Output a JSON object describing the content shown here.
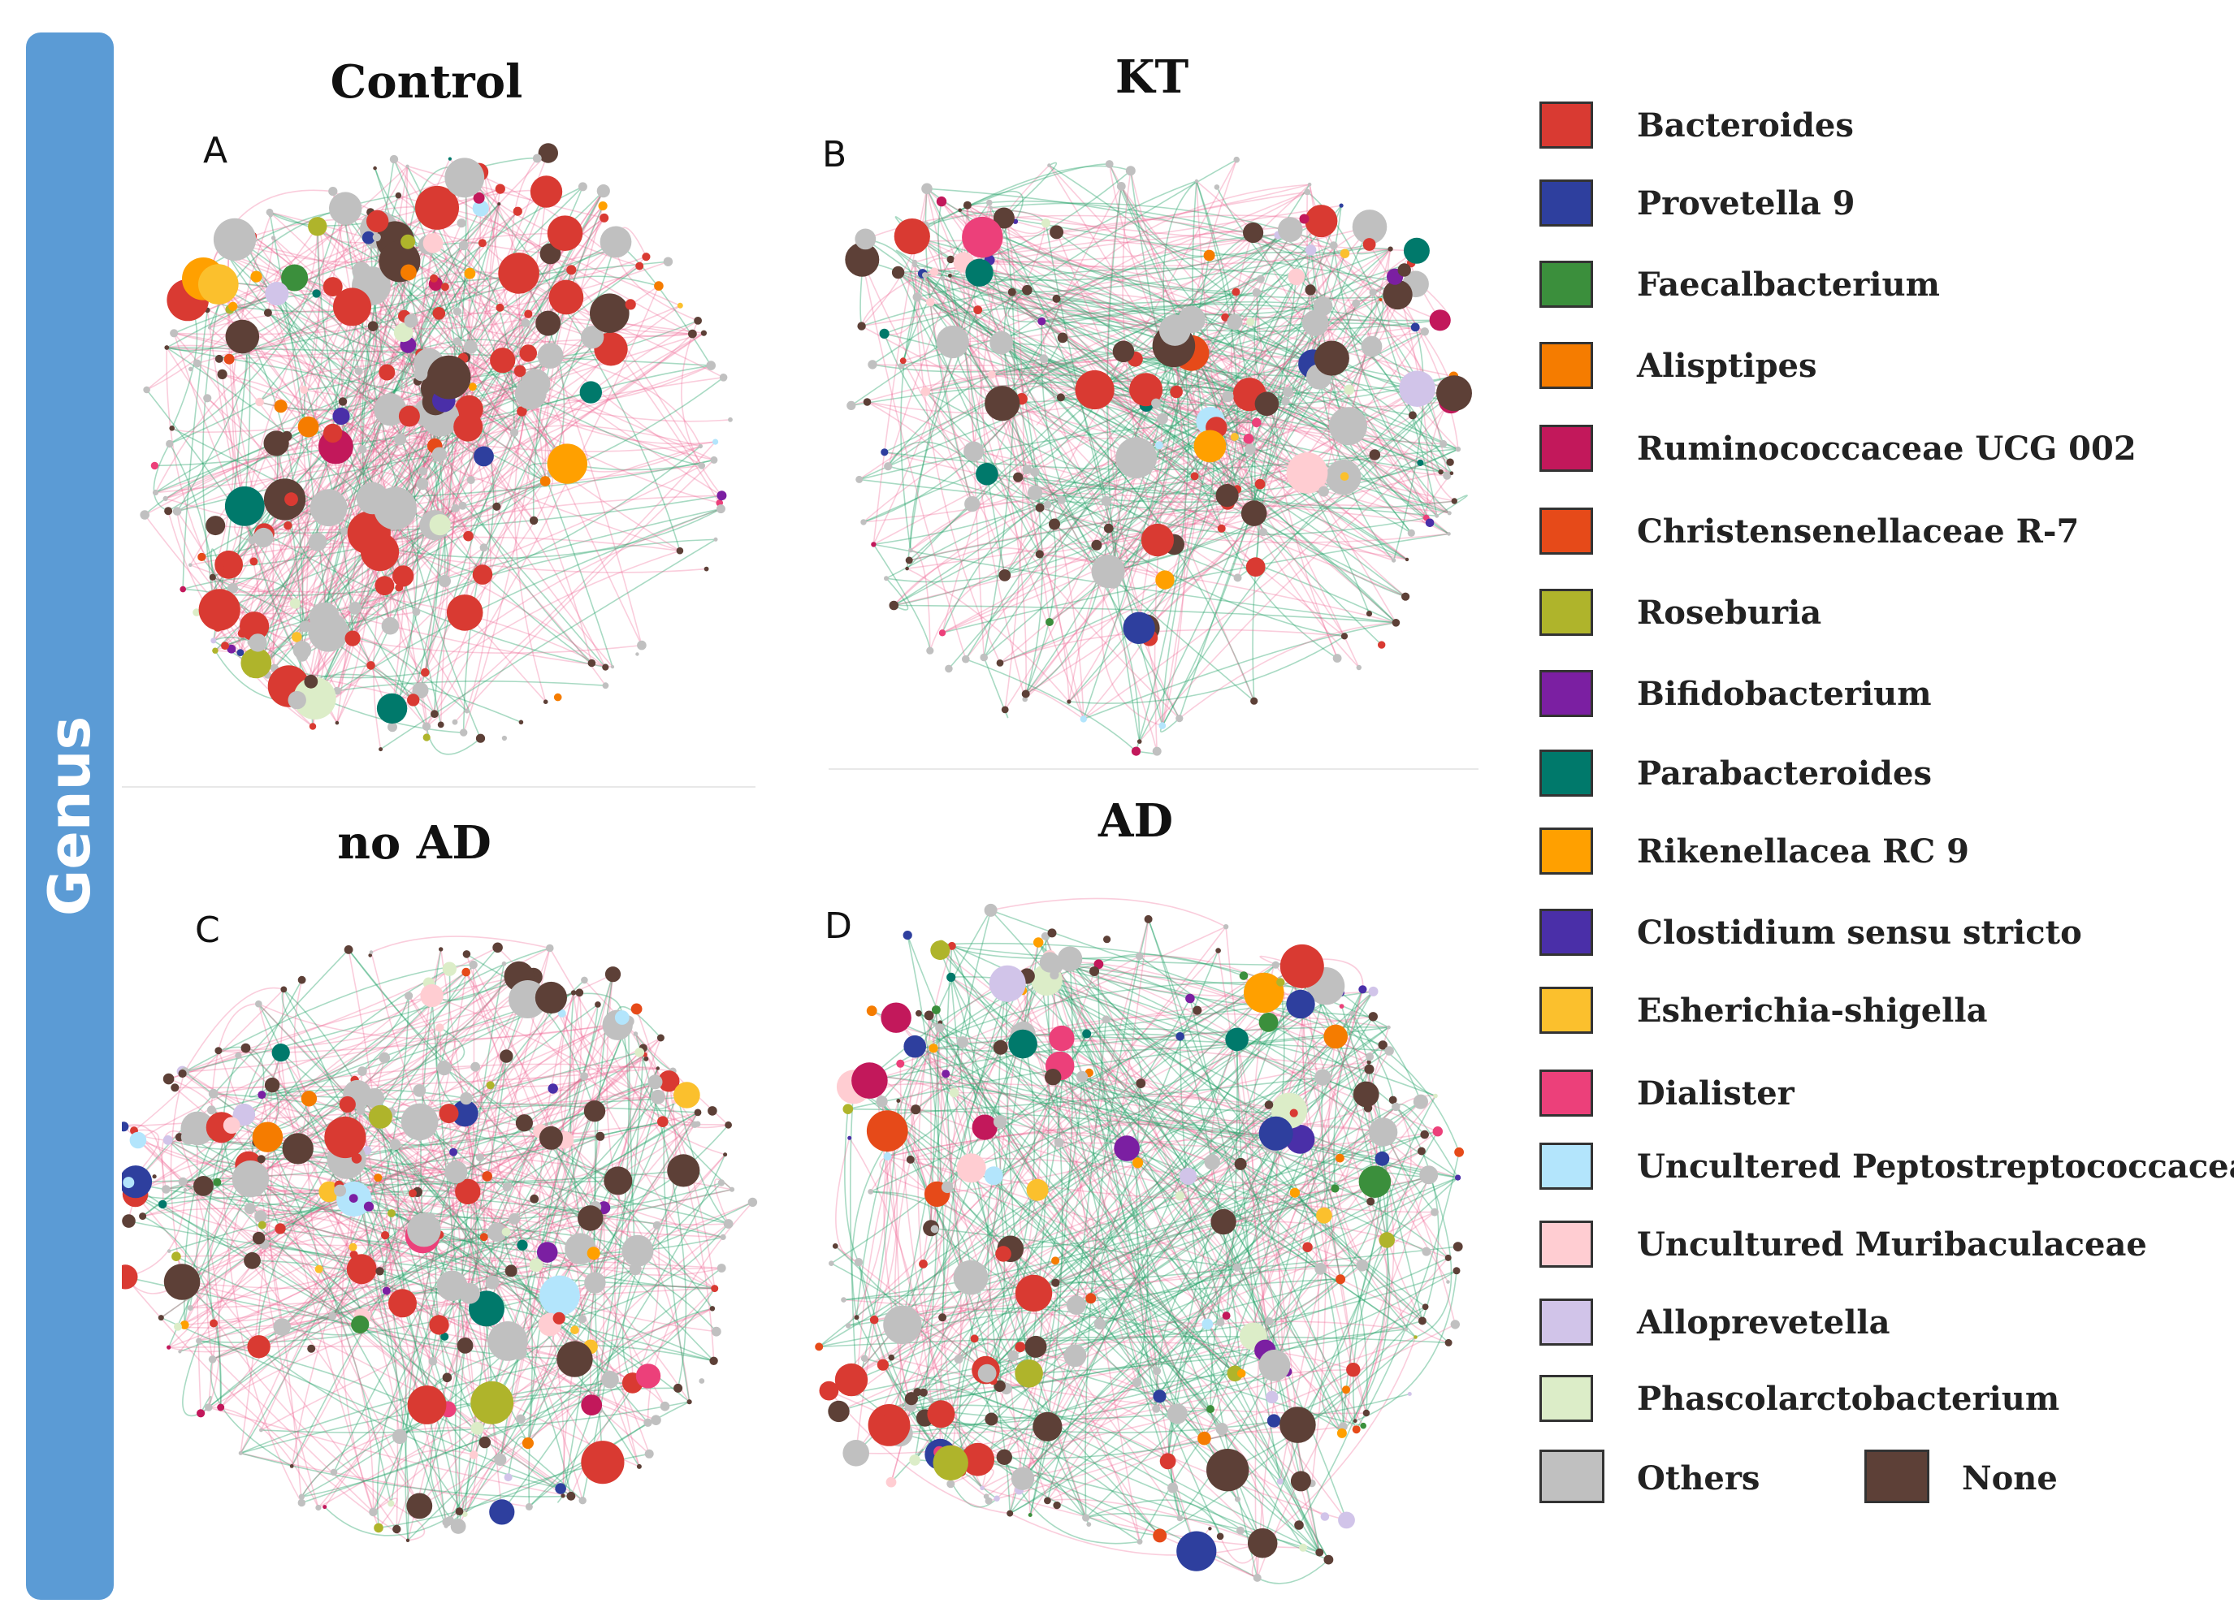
{
  "side_label": "Genus",
  "panels": [
    {
      "title": "Control",
      "letter": "A"
    },
    {
      "title": "KT",
      "letter": "B"
    },
    {
      "title": "no AD",
      "letter": "C"
    },
    {
      "title": "AD",
      "letter": "D"
    }
  ],
  "legend": [
    {
      "label": "Bacteroides",
      "color": "#d93a32"
    },
    {
      "label": "Provetella 9",
      "color": "#2e3f9e"
    },
    {
      "label": "Faecalbacterium",
      "color": "#3b8f3c"
    },
    {
      "label": "Alisptipes",
      "color": "#f57c00"
    },
    {
      "label": "Ruminococcaceae UCG 002",
      "color": "#c2185b"
    },
    {
      "label": "Christensenellaceae R-7",
      "color": "#e64a19"
    },
    {
      "label": "Roseburia",
      "color": "#afb42b"
    },
    {
      "label": "Bifidobacterium",
      "color": "#7b1fa2"
    },
    {
      "label": "Parabacteroides",
      "color": "#00796b"
    },
    {
      "label": "Rikenellacea RC 9",
      "color": "#ffa000"
    },
    {
      "label": "Clostidium sensu stricto",
      "color": "#4a2fa8"
    },
    {
      "label": "Esherichia-shigella",
      "color": "#fbc02d"
    },
    {
      "label": "Dialister",
      "color": "#ec407a"
    },
    {
      "label": "Uncultered Peptostreptococcaceae",
      "color": "#b3e5fc"
    },
    {
      "label": "Uncultured Muribaculaceae",
      "color": "#ffcdd2"
    },
    {
      "label": "Alloprevetella",
      "color": "#d1c4e9"
    },
    {
      "label": "Phascolarctobacterium",
      "color": "#dcedc8"
    }
  ],
  "legend_last": [
    {
      "label": "Others",
      "color": "#c0c0c0"
    },
    {
      "label": "None",
      "color": "#5d4037"
    }
  ],
  "edge_colors": {
    "positive": "#f06292",
    "negative": "#26a269"
  }
}
